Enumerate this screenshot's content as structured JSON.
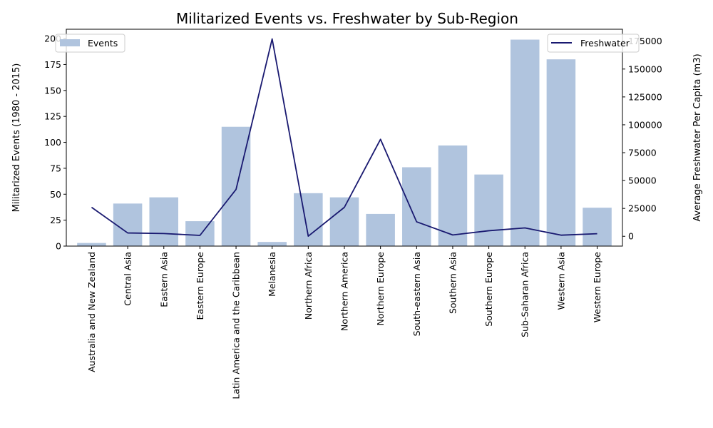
{
  "chart_data": {
    "type": "bar+line",
    "title": "Militarized Events vs. Freshwater by Sub-Region",
    "ylabel_left": "Militarized Events (1980 - 2015)",
    "ylabel_right": "Average Freshwater Per Capita (m3)",
    "categories": [
      "Australia and New Zealand",
      "Central Asia",
      "Eastern Asia",
      "Eastern Europe",
      "Latin America and the Caribbean",
      "Melanesia",
      "Northern Africa",
      "Northern America",
      "Northern Europe",
      "South-eastern Asia",
      "Southern Asia",
      "Southern Europe",
      "Sub-Saharan Africa",
      "Western Asia",
      "Western Europe"
    ],
    "series": [
      {
        "name": "Events",
        "kind": "bar",
        "axis": "left",
        "color": "#b0c4de",
        "values": [
          3,
          41,
          47,
          24,
          115,
          4,
          51,
          47,
          31,
          76,
          97,
          69,
          199,
          180,
          37
        ]
      },
      {
        "name": "Freshwater",
        "kind": "line",
        "axis": "right",
        "color": "#191970",
        "values": [
          26000,
          3000,
          2500,
          800,
          42000,
          177000,
          100,
          26000,
          87000,
          13000,
          1200,
          5000,
          7500,
          1000,
          2300
        ]
      }
    ],
    "yticks_left": [
      "0",
      "25",
      "50",
      "75",
      "100",
      "125",
      "150",
      "175",
      "200"
    ],
    "ytick_values_left": [
      0,
      25,
      50,
      75,
      100,
      125,
      150,
      175,
      200
    ],
    "ylim_left": [
      0,
      209
    ],
    "yticks_right": [
      "0",
      "25000",
      "50000",
      "75000",
      "100000",
      "125000",
      "150000",
      "175000"
    ],
    "ytick_values_right": [
      0,
      25000,
      50000,
      75000,
      100000,
      125000,
      150000,
      175000
    ],
    "ylim_right": [
      -8800,
      185700
    ],
    "legend_left": {
      "placement": "upper left",
      "label": "Events"
    },
    "legend_right": {
      "placement": "upper right",
      "label": "Freshwater"
    }
  }
}
